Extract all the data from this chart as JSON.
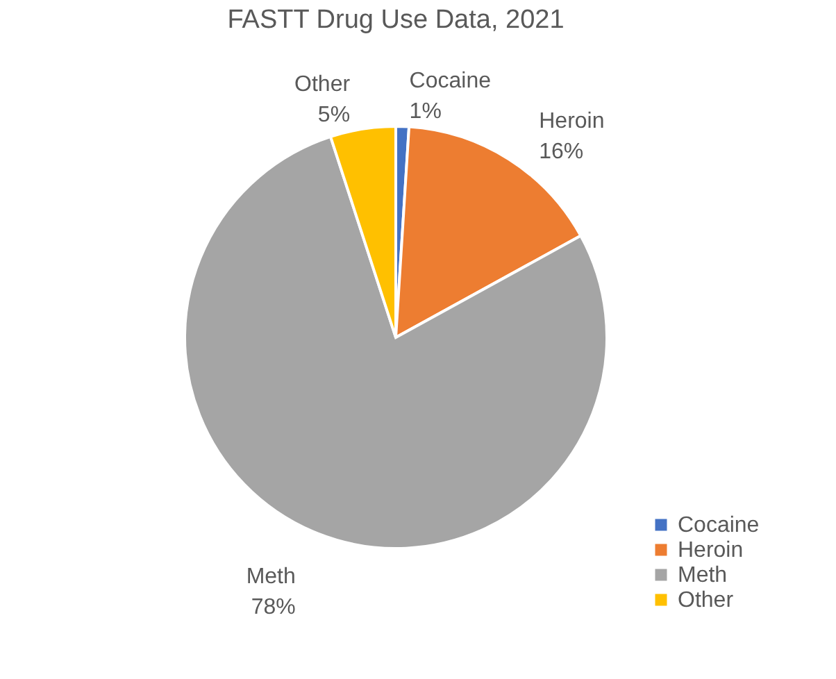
{
  "chart_data": {
    "type": "pie",
    "title": "FASTT Drug Use Data, 2021",
    "categories": [
      "Cocaine",
      "Heroin",
      "Meth",
      "Other"
    ],
    "values": [
      1,
      16,
      78,
      5
    ],
    "value_labels": [
      "1%",
      "16%",
      "78%",
      "5%"
    ],
    "colors": [
      "#4472c4",
      "#ed7d31",
      "#a5a5a5",
      "#ffc000"
    ],
    "legend": "bottom right"
  }
}
